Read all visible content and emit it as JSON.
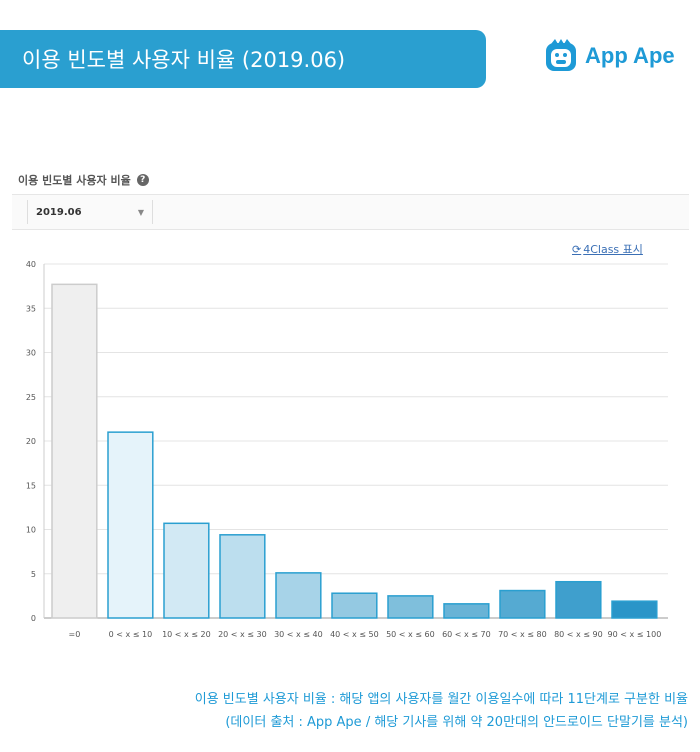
{
  "header": {
    "title": "이용 빈도별 사용자 비율 (2019.06)",
    "logo_text": "App Ape"
  },
  "section": {
    "label": "이용 빈도별 사용자 비율",
    "help_icon": "help-icon"
  },
  "filter": {
    "selected_period": "2019.06"
  },
  "toggle": {
    "label": "4Class 표시",
    "icon": "refresh-icon"
  },
  "caption": {
    "line1": "이용 빈도별 사용자 비율 : 해당 앱의 사용자를 월간 이용일수에 따라 11단계로 구분한 비율",
    "line2": "(데이터 출처 : App Ape / 해당 기사를 위해 약 20만대의 안드로이드 단말기를 분석)"
  },
  "chart_data": {
    "type": "bar",
    "categories": [
      "=0",
      "0 < x ≤ 10",
      "10 < x ≤ 20",
      "20 < x ≤ 30",
      "30 < x ≤ 40",
      "40 < x ≤ 50",
      "50 < x ≤ 60",
      "60 < x ≤ 70",
      "70 < x ≤ 80",
      "80 < x ≤ 90",
      "90 < x ≤ 100"
    ],
    "values": [
      37.7,
      21.0,
      10.7,
      9.4,
      5.1,
      2.8,
      2.5,
      1.6,
      3.1,
      4.1,
      1.9
    ],
    "yticks": [
      0,
      5,
      10,
      15,
      20,
      25,
      30,
      35,
      40
    ],
    "ylim": [
      0,
      40
    ],
    "grid": true,
    "colors": {
      "fills": [
        "#efefef",
        "#e5f3fa",
        "#d2e9f4",
        "#bcdeee",
        "#a7d3e8",
        "#94c9e2",
        "#7fbfdc",
        "#69b3d6",
        "#55aad2",
        "#3f9fcd",
        "#2a95c8"
      ],
      "strokes": [
        "#cccccc",
        "#2a9fd0",
        "#2a9fd0",
        "#2a9fd0",
        "#2a9fd0",
        "#2a9fd0",
        "#2a9fd0",
        "#2a9fd0",
        "#2a9fd0",
        "#2a9fd0",
        "#2a9fd0"
      ]
    }
  }
}
